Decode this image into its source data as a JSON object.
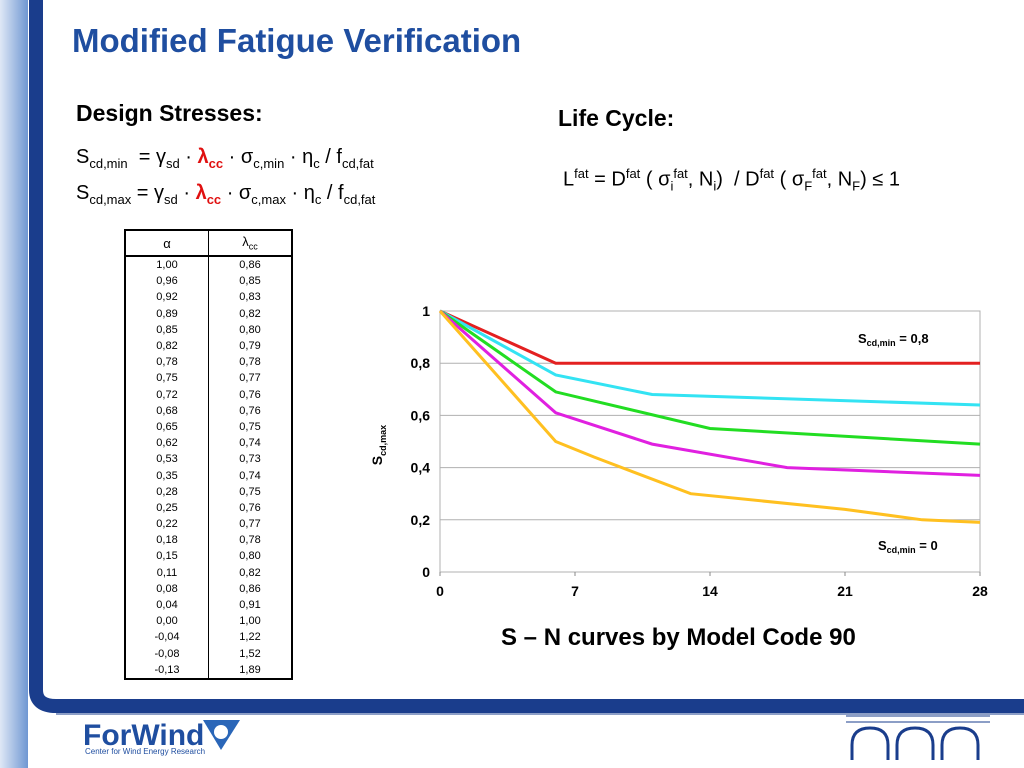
{
  "title": "Modified Fatigue Verification",
  "design_stresses": {
    "heading": "Design Stresses:",
    "formula_min": [
      "S",
      "cd,min",
      "  = ",
      "γ",
      "sd",
      " · ",
      "λ",
      "cc",
      " · σ",
      "c,min",
      " · ",
      "η",
      "c",
      " / f",
      "cd,fat"
    ],
    "formula_max": [
      "S",
      "cd,max",
      " = ",
      "γ",
      "sd",
      " · ",
      "λ",
      "cc",
      " · σ",
      "c,max",
      " · ",
      "η",
      "c",
      " / f",
      "cd,fat"
    ]
  },
  "life_cycle": {
    "heading": "Life Cycle:",
    "formula": [
      "L",
      "fat",
      " = D",
      "fat",
      " ( σ",
      "i",
      "fat",
      ", N",
      "i",
      ")  / D",
      "fat",
      " ( σ",
      "F",
      "fat",
      ", N",
      "F",
      ") ≤ 1"
    ]
  },
  "table": {
    "columns": [
      {
        "symbol": "α"
      },
      {
        "symbol": "λ",
        "subscript": "cc"
      }
    ],
    "rows": [
      [
        "1,00",
        "0,86"
      ],
      [
        "0,96",
        "0,85"
      ],
      [
        "0,92",
        "0,83"
      ],
      [
        "0,89",
        "0,82"
      ],
      [
        "0,85",
        "0,80"
      ],
      [
        "0,82",
        "0,79"
      ],
      [
        "0,78",
        "0,78"
      ],
      [
        "0,75",
        "0,77"
      ],
      [
        "0,72",
        "0,76"
      ],
      [
        "0,68",
        "0,76"
      ],
      [
        "0,65",
        "0,75"
      ],
      [
        "0,62",
        "0,74"
      ],
      [
        "0,53",
        "0,73"
      ],
      [
        "0,35",
        "0,74"
      ],
      [
        "0,28",
        "0,75"
      ],
      [
        "0,25",
        "0,76"
      ],
      [
        "0,22",
        "0,77"
      ],
      [
        "0,18",
        "0,78"
      ],
      [
        "0,15",
        "0,80"
      ],
      [
        "0,11",
        "0,82"
      ],
      [
        "0,08",
        "0,86"
      ],
      [
        "0,04",
        "0,91"
      ],
      [
        "0,00",
        "1,00"
      ],
      [
        "-0,04",
        "1,22"
      ],
      [
        "-0,08",
        "1,52"
      ],
      [
        "-0,13",
        "1,89"
      ]
    ]
  },
  "chart_data": {
    "type": "line",
    "caption": "S – N curves by Model Code 90",
    "y_label": {
      "text": "S",
      "subscript": "cd,max"
    },
    "xlim": [
      0,
      28
    ],
    "xticks": [
      0,
      7,
      14,
      21,
      28
    ],
    "ylim": [
      0,
      1
    ],
    "yticks": [
      0,
      {
        "value": 0.2,
        "label": "0,2"
      },
      {
        "value": 0.4,
        "label": "0,4"
      },
      {
        "value": 0.6,
        "label": "0,6"
      },
      {
        "value": 0.8,
        "label": "0,8"
      },
      1
    ],
    "grid": true,
    "series": [
      {
        "color": "#e32020",
        "x": [
          0,
          6,
          28
        ],
        "values": [
          1,
          0.8,
          0.8
        ]
      },
      {
        "color": "#33e3f3",
        "x": [
          0,
          6,
          11,
          28
        ],
        "values": [
          1,
          0.755,
          0.68,
          0.64
        ]
      },
      {
        "color": "#22dd22",
        "x": [
          0,
          6,
          14,
          28
        ],
        "values": [
          1,
          0.69,
          0.55,
          0.49
        ]
      },
      {
        "color": "#e020e0",
        "x": [
          0,
          6,
          11,
          18,
          28
        ],
        "values": [
          1,
          0.61,
          0.49,
          0.4,
          0.37
        ]
      },
      {
        "color": "#ffc020",
        "x": [
          0,
          6,
          8,
          13,
          21,
          25,
          28
        ],
        "values": [
          1,
          0.5,
          0.44,
          0.3,
          0.24,
          0.2,
          0.19
        ]
      }
    ],
    "annotations": [
      {
        "parts": [
          "S",
          "cd,min",
          " = 0,8"
        ]
      },
      {
        "parts": [
          "S",
          "cd,min",
          " = 0"
        ]
      }
    ]
  },
  "footer": {
    "logo": "ForWind",
    "tagline": "Center for Wind Energy Research"
  }
}
